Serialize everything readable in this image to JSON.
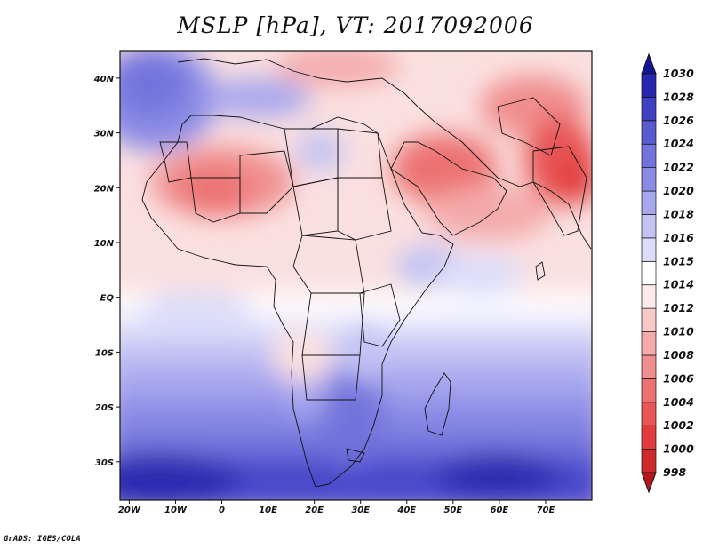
{
  "title": "MSLP [hPa], VT: 2017092006",
  "credit": "GrADS: IGES/COLA",
  "map": {
    "projection": "lat-lon",
    "lon_range": [
      -22,
      80
    ],
    "lat_range": [
      -37,
      45
    ],
    "lon_ticks": [
      {
        "value": -20,
        "label": "20W"
      },
      {
        "value": -10,
        "label": "10W"
      },
      {
        "value": 0,
        "label": "0"
      },
      {
        "value": 10,
        "label": "10E"
      },
      {
        "value": 20,
        "label": "20E"
      },
      {
        "value": 30,
        "label": "30E"
      },
      {
        "value": 40,
        "label": "40E"
      },
      {
        "value": 50,
        "label": "50E"
      },
      {
        "value": 60,
        "label": "60E"
      },
      {
        "value": 70,
        "label": "70E"
      }
    ],
    "lat_ticks": [
      {
        "value": 40,
        "label": "40N"
      },
      {
        "value": 30,
        "label": "30N"
      },
      {
        "value": 20,
        "label": "20N"
      },
      {
        "value": 10,
        "label": "10N"
      },
      {
        "value": 0,
        "label": "EQ"
      },
      {
        "value": -10,
        "label": "10S"
      },
      {
        "value": -20,
        "label": "20S"
      },
      {
        "value": -30,
        "label": "30S"
      }
    ],
    "pressure_features": [
      {
        "name": "low-india-pakistan",
        "lon": 75,
        "lat": 24,
        "value": 1003
      },
      {
        "name": "low-arabia",
        "lon": 48,
        "lat": 24,
        "value": 1006
      },
      {
        "name": "low-sahara",
        "lon": -2,
        "lat": 21,
        "value": 1008
      },
      {
        "name": "low-eastern-europe",
        "lon": 32,
        "lat": 44,
        "value": 1010
      },
      {
        "name": "high-mid-atlantic",
        "lon": -18,
        "lat": 38,
        "value": 1019
      },
      {
        "name": "high-south-atlantic",
        "lon": -8,
        "lat": -35,
        "value": 1029
      },
      {
        "name": "high-south-indian",
        "lon": 62,
        "lat": -34,
        "value": 1027
      },
      {
        "name": "ridge-south-africa",
        "lon": 30,
        "lat": -27,
        "value": 1022
      }
    ]
  },
  "colorbar": {
    "title": "",
    "levels": [
      "998",
      "1000",
      "1002",
      "1004",
      "1006",
      "1008",
      "1010",
      "1012",
      "1014",
      "1015",
      "1016",
      "1018",
      "1020",
      "1022",
      "1024",
      "1026",
      "1028",
      "1030"
    ],
    "colors": [
      "#b4161c",
      "#cf2a2a",
      "#e23c3c",
      "#e85656",
      "#ec7272",
      "#f08e8e",
      "#f4aaaa",
      "#f9c8c8",
      "#fdebeb",
      "#ffffff",
      "#ddddfa",
      "#c3c3f4",
      "#a7a7ee",
      "#8b8be6",
      "#7373dc",
      "#5a5ad0",
      "#4040c2",
      "#2626ae",
      "#141496"
    ]
  }
}
